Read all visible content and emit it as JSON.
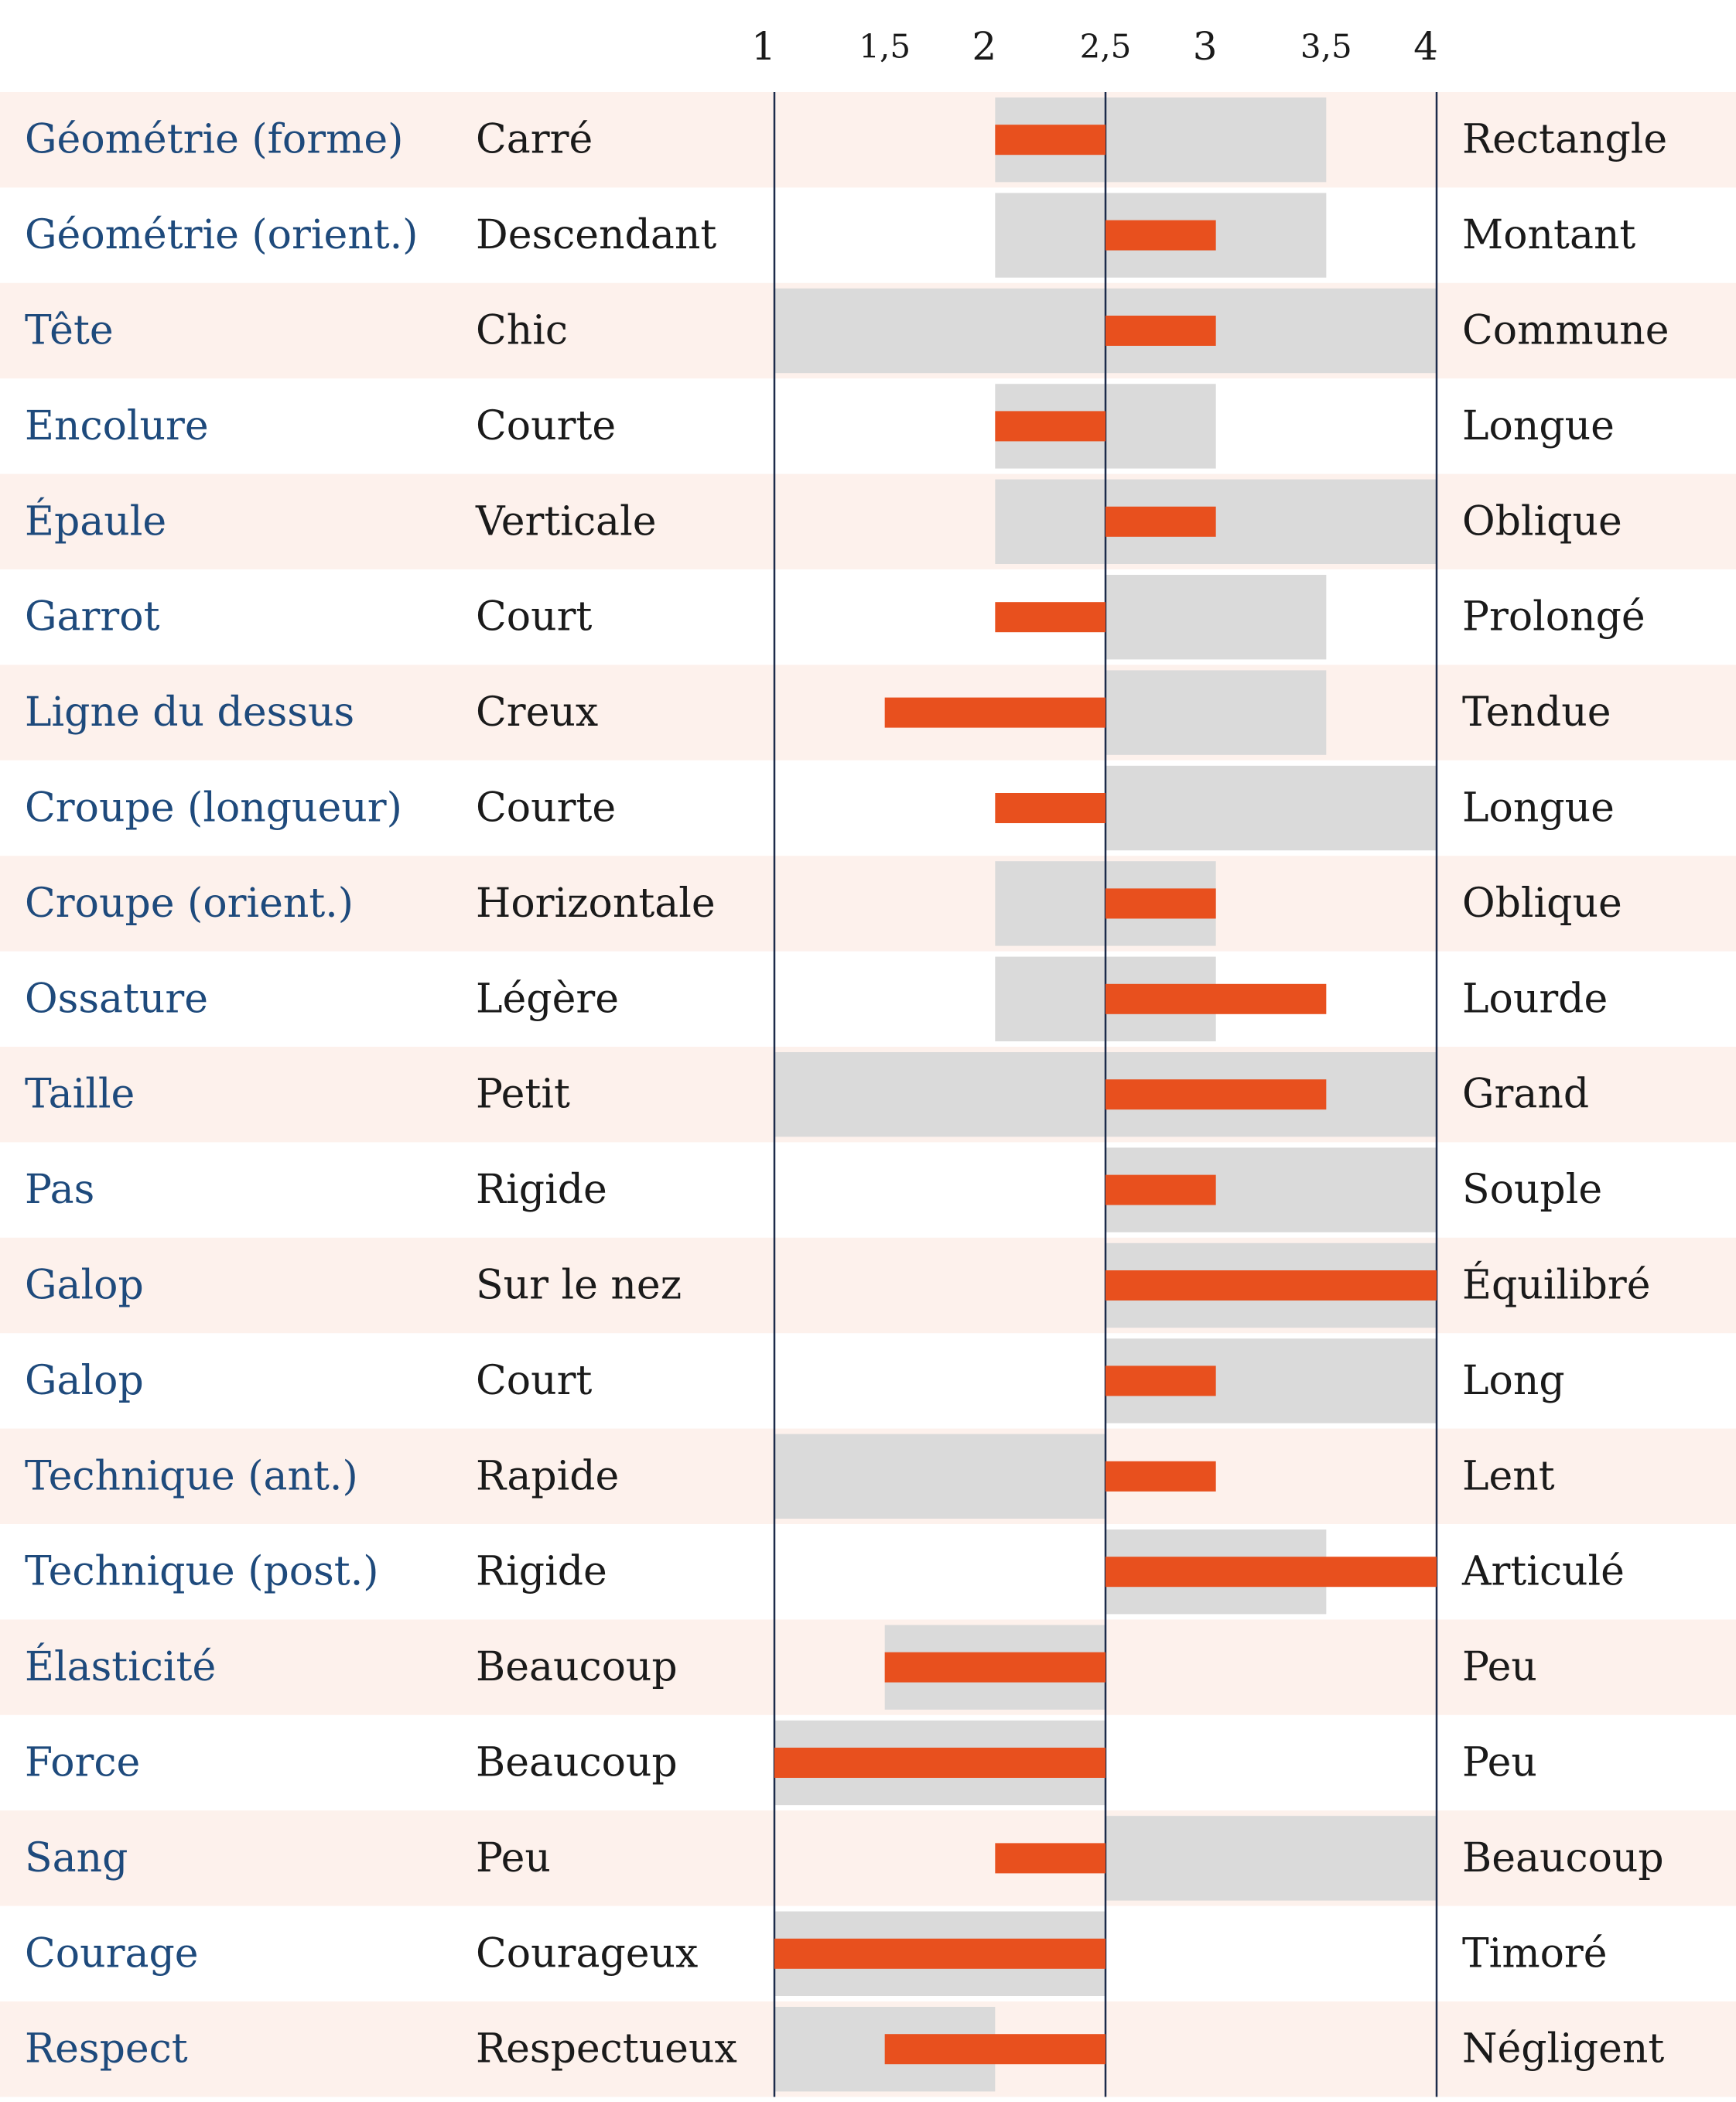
{
  "chart_data": {
    "type": "bar",
    "title": "",
    "xlabel": "",
    "ylabel": "",
    "xlim": [
      1,
      4
    ],
    "baseline": 2.5,
    "ticks": [
      {
        "value": 1,
        "label": "1"
      },
      {
        "value": 1.5,
        "label": "1,5"
      },
      {
        "value": 2,
        "label": "2"
      },
      {
        "value": 2.5,
        "label": "2,5"
      },
      {
        "value": 3,
        "label": "3"
      },
      {
        "value": 3.5,
        "label": "3,5"
      },
      {
        "value": 4,
        "label": "4"
      }
    ],
    "columns": [
      "criterion",
      "low_label",
      "value",
      "range_min",
      "range_max",
      "high_label"
    ],
    "rows": [
      {
        "criterion": "Géométrie (forme)",
        "low_label": "Carré",
        "high_label": "Rectangle",
        "value": 2,
        "range": [
          2,
          3.5
        ]
      },
      {
        "criterion": "Géométrie (orient.)",
        "low_label": "Descendant",
        "high_label": "Montant",
        "value": 3,
        "range": [
          2,
          3.5
        ]
      },
      {
        "criterion": "Tête",
        "low_label": "Chic",
        "high_label": "Commune",
        "value": 3,
        "range": [
          1,
          4
        ]
      },
      {
        "criterion": "Encolure",
        "low_label": "Courte",
        "high_label": "Longue",
        "value": 2,
        "range": [
          2,
          3
        ]
      },
      {
        "criterion": "Épaule",
        "low_label": "Verticale",
        "high_label": "Oblique",
        "value": 3,
        "range": [
          2,
          4
        ]
      },
      {
        "criterion": "Garrot",
        "low_label": "Court",
        "high_label": "Prolongé",
        "value": 2,
        "range": [
          2.5,
          3.5
        ]
      },
      {
        "criterion": "Ligne du dessus",
        "low_label": "Creux",
        "high_label": "Tendue",
        "value": 1.5,
        "range": [
          2.5,
          3.5
        ]
      },
      {
        "criterion": "Croupe (longueur)",
        "low_label": "Courte",
        "high_label": "Longue",
        "value": 2,
        "range": [
          2.5,
          4
        ]
      },
      {
        "criterion": "Croupe (orient.)",
        "low_label": "Horizontale",
        "high_label": "Oblique",
        "value": 3,
        "range": [
          2,
          3
        ]
      },
      {
        "criterion": "Ossature",
        "low_label": "Légère",
        "high_label": "Lourde",
        "value": 3.5,
        "range": [
          2,
          3
        ]
      },
      {
        "criterion": "Taille",
        "low_label": "Petit",
        "high_label": "Grand",
        "value": 3.5,
        "range": [
          1,
          4
        ]
      },
      {
        "criterion": "Pas",
        "low_label": "Rigide",
        "high_label": "Souple",
        "value": 3,
        "range": [
          2.5,
          4
        ]
      },
      {
        "criterion": "Galop",
        "low_label": "Sur le nez",
        "high_label": "Équilibré",
        "value": 4,
        "range": [
          2.5,
          4
        ]
      },
      {
        "criterion": "Galop",
        "low_label": "Court",
        "high_label": "Long",
        "value": 3,
        "range": [
          2.5,
          4
        ]
      },
      {
        "criterion": "Technique (ant.)",
        "low_label": "Rapide",
        "high_label": "Lent",
        "value": 3,
        "range": [
          1,
          2.5
        ]
      },
      {
        "criterion": "Technique (post.)",
        "low_label": "Rigide",
        "high_label": "Articulé",
        "value": 4,
        "range": [
          2.5,
          3.5
        ]
      },
      {
        "criterion": "Élasticité",
        "low_label": "Beaucoup",
        "high_label": "Peu",
        "value": 1.5,
        "range": [
          1.5,
          2.5
        ]
      },
      {
        "criterion": "Force",
        "low_label": "Beaucoup",
        "high_label": "Peu",
        "value": 1,
        "range": [
          1,
          2.5
        ]
      },
      {
        "criterion": "Sang",
        "low_label": "Peu",
        "high_label": "Beaucoup",
        "value": 2,
        "range": [
          2.5,
          4
        ]
      },
      {
        "criterion": "Courage",
        "low_label": "Courageux",
        "high_label": "Timoré",
        "value": 1,
        "range": [
          1,
          2.5
        ]
      },
      {
        "criterion": "Respect",
        "low_label": "Respectueux",
        "high_label": "Négligent",
        "value": 1.5,
        "range": [
          1,
          2
        ]
      }
    ],
    "colors": {
      "bar": "#e8501e",
      "range": "#dadada",
      "row_stripe": "#fdf1ec",
      "criterion_text": "#1e4a7c",
      "label_text": "#1a1a1a",
      "axis_line": "#1c2b4a"
    },
    "grid": false,
    "legend": "none"
  }
}
